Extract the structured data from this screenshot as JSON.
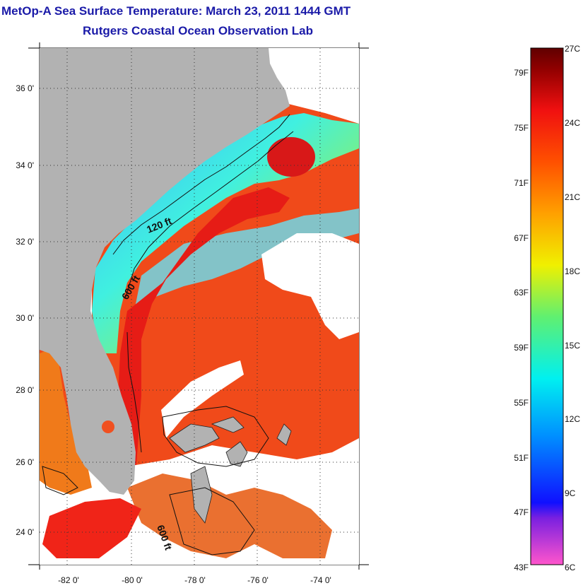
{
  "header": {
    "title": "MetOp-A Sea Surface Temperature:  March 23, 2011 1444 GMT",
    "subtitle": "Rutgers Coastal Ocean Observation Lab"
  },
  "map": {
    "lat_labels": [
      "36 0'",
      "34 0'",
      "32 0'",
      "30 0'",
      "28 0'",
      "26 0'",
      "24 0'"
    ],
    "lon_labels": [
      "-82 0'",
      "-80 0'",
      "-78 0'",
      "-76 0'",
      "-74 0'"
    ],
    "contour_labels": [
      "120 ft",
      "600 ft",
      "600 ft"
    ],
    "colors": {
      "land": "#b2b2b2",
      "warm_sst": "#f04a1a",
      "cloud": "#ffffff"
    }
  },
  "colorbar": {
    "fahrenheit_labels": [
      "79F",
      "75F",
      "71F",
      "67F",
      "63F",
      "59F",
      "55F",
      "51F",
      "47F",
      "43F"
    ],
    "celsius_labels": [
      "27C",
      "24C",
      "21C",
      "18C",
      "15C",
      "12C",
      "9C",
      "6C"
    ],
    "gradient": [
      "#ff55cc",
      "#7a20e0",
      "#1010ff",
      "#0090ff",
      "#00f0f0",
      "#60f070",
      "#f0f000",
      "#ffa000",
      "#ff5000",
      "#f01010",
      "#900000",
      "#600000"
    ]
  }
}
